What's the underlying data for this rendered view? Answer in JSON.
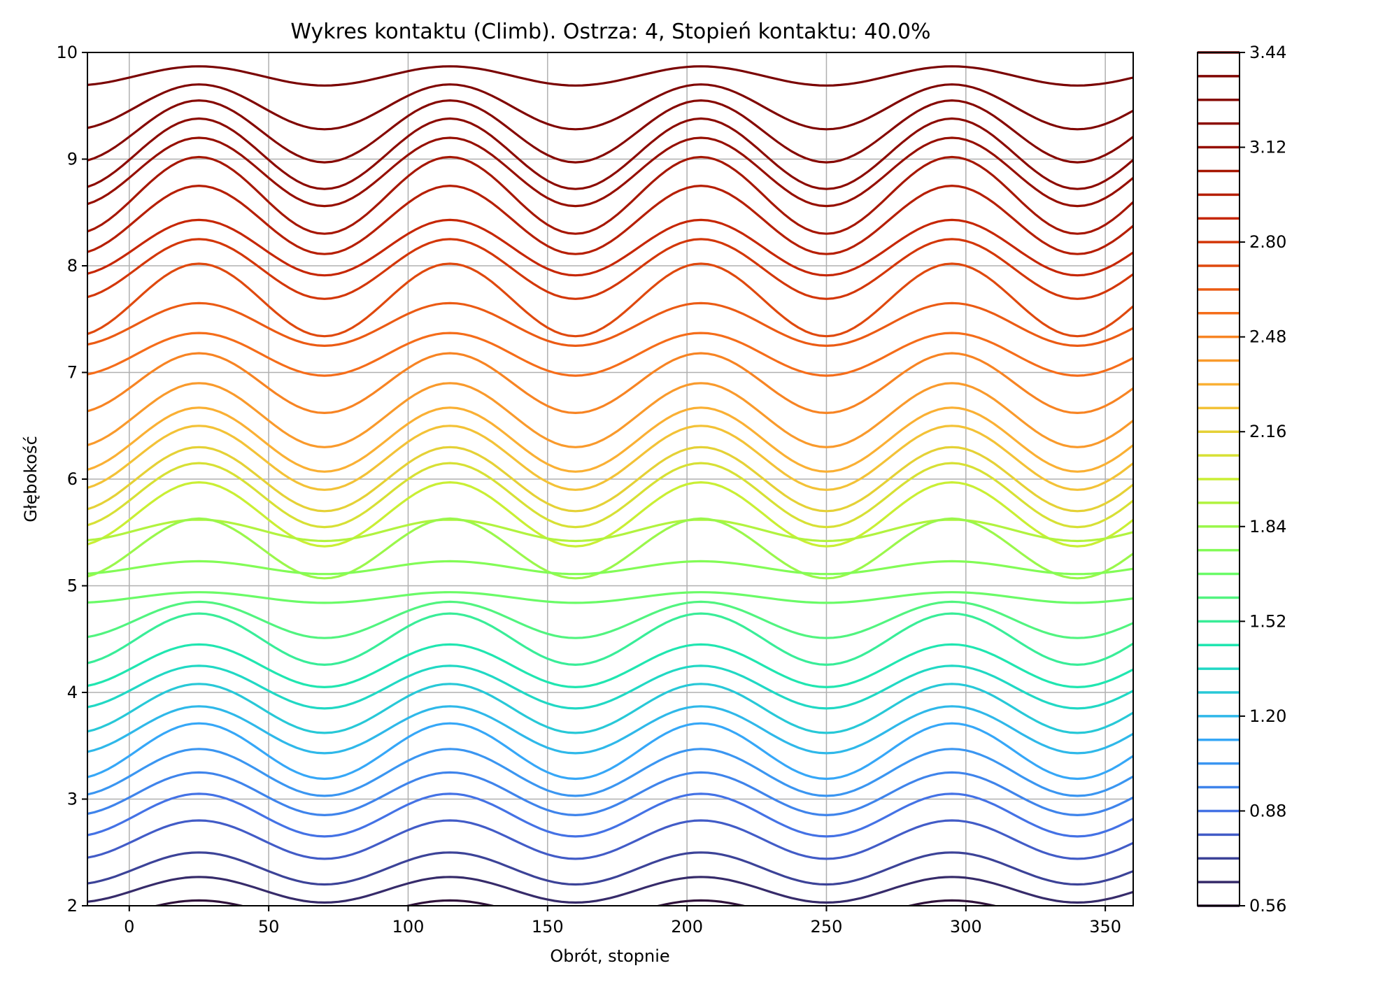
{
  "chart_data": {
    "type": "contour",
    "title": "Wykres kontaktu (Climb). Ostrza: 4, Stopień kontaktu: 40.0%",
    "xlabel": "Obrót, stopnie",
    "ylabel": "Głębokość",
    "xlim": [
      -15,
      360
    ],
    "ylim": [
      2,
      10
    ],
    "xticks": [
      "0",
      "50",
      "100",
      "150",
      "200",
      "250",
      "300",
      "350"
    ],
    "xtick_values": [
      0,
      50,
      100,
      150,
      200,
      250,
      300,
      350
    ],
    "yticks": [
      "2",
      "3",
      "4",
      "5",
      "6",
      "7",
      "8",
      "9",
      "10"
    ],
    "ytick_values": [
      2,
      3,
      4,
      5,
      6,
      7,
      8,
      9,
      10
    ],
    "grid": true,
    "colormap": "turbo",
    "colorbar": {
      "min": 0.56,
      "max": 3.44,
      "step": 0.08,
      "ticks": [
        "0.56",
        "0.88",
        "1.20",
        "1.52",
        "1.84",
        "2.16",
        "2.48",
        "2.80",
        "3.12",
        "3.44"
      ],
      "tick_values": [
        0.56,
        0.88,
        1.2,
        1.52,
        1.84,
        2.16,
        2.48,
        2.8,
        3.12,
        3.44
      ]
    },
    "contour_levels": [
      {
        "level": 3.44,
        "base_depth": 9.78,
        "amplitude": 0.09
      },
      {
        "level": 3.36,
        "base_depth": 9.49,
        "amplitude": 0.21
      },
      {
        "level": 3.28,
        "base_depth": 9.26,
        "amplitude": 0.29
      },
      {
        "level": 3.2,
        "base_depth": 9.05,
        "amplitude": 0.33
      },
      {
        "level": 3.12,
        "base_depth": 8.88,
        "amplitude": 0.32
      },
      {
        "level": 3.04,
        "base_depth": 8.66,
        "amplitude": 0.36
      },
      {
        "level": 2.96,
        "base_depth": 8.43,
        "amplitude": 0.32
      },
      {
        "level": 2.88,
        "base_depth": 8.17,
        "amplitude": 0.26
      },
      {
        "level": 2.8,
        "base_depth": 7.97,
        "amplitude": 0.28
      },
      {
        "level": 2.72,
        "base_depth": 7.68,
        "amplitude": 0.34
      },
      {
        "level": 2.64,
        "base_depth": 7.45,
        "amplitude": 0.2
      },
      {
        "level": 2.56,
        "base_depth": 7.17,
        "amplitude": 0.2
      },
      {
        "level": 2.48,
        "base_depth": 6.9,
        "amplitude": 0.28
      },
      {
        "level": 2.4,
        "base_depth": 6.6,
        "amplitude": 0.3
      },
      {
        "level": 2.32,
        "base_depth": 6.37,
        "amplitude": 0.3
      },
      {
        "level": 2.24,
        "base_depth": 6.2,
        "amplitude": 0.3
      },
      {
        "level": 2.16,
        "base_depth": 6.0,
        "amplitude": 0.3
      },
      {
        "level": 2.08,
        "base_depth": 5.85,
        "amplitude": 0.3
      },
      {
        "level": 2.0,
        "base_depth": 5.67,
        "amplitude": 0.3
      },
      {
        "level": 1.92,
        "base_depth": 5.52,
        "amplitude": 0.1
      },
      {
        "level": 1.84,
        "base_depth": 5.35,
        "amplitude": 0.28
      },
      {
        "level": 1.76,
        "base_depth": 5.17,
        "amplitude": 0.06
      },
      {
        "level": 1.68,
        "base_depth": 4.89,
        "amplitude": 0.05
      },
      {
        "level": 1.6,
        "base_depth": 4.68,
        "amplitude": 0.17
      },
      {
        "level": 1.52,
        "base_depth": 4.5,
        "amplitude": 0.24
      },
      {
        "level": 1.44,
        "base_depth": 4.25,
        "amplitude": 0.2
      },
      {
        "level": 1.36,
        "base_depth": 4.05,
        "amplitude": 0.2
      },
      {
        "level": 1.28,
        "base_depth": 3.85,
        "amplitude": 0.23
      },
      {
        "level": 1.2,
        "base_depth": 3.65,
        "amplitude": 0.22
      },
      {
        "level": 1.12,
        "base_depth": 3.45,
        "amplitude": 0.26
      },
      {
        "level": 1.04,
        "base_depth": 3.25,
        "amplitude": 0.22
      },
      {
        "level": 0.96,
        "base_depth": 3.05,
        "amplitude": 0.2
      },
      {
        "level": 0.88,
        "base_depth": 2.85,
        "amplitude": 0.2
      },
      {
        "level": 0.8,
        "base_depth": 2.62,
        "amplitude": 0.18
      },
      {
        "level": 0.72,
        "base_depth": 2.35,
        "amplitude": 0.15
      },
      {
        "level": 0.64,
        "base_depth": 2.15,
        "amplitude": 0.12
      },
      {
        "level": 0.56,
        "base_depth": 1.95,
        "amplitude": 0.1
      }
    ]
  }
}
